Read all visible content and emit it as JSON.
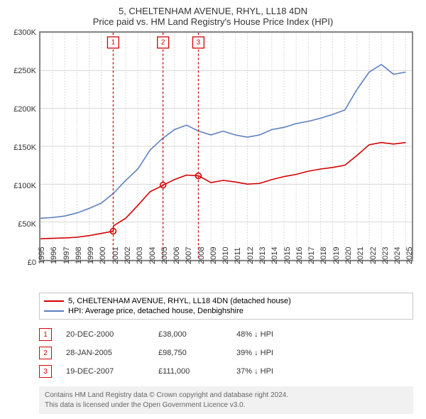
{
  "title_line1": "5, CHELTENHAM AVENUE, RHYL, LL18 4DN",
  "title_line2": "Price paid vs. HM Land Registry's House Price Index (HPI)",
  "chart": {
    "type": "line",
    "background_color": "#ffffff",
    "border_color": "#888888",
    "grid_color": "#d7d7d7",
    "x_years": [
      1995,
      1996,
      1997,
      1998,
      1999,
      2000,
      2001,
      2002,
      2003,
      2004,
      2005,
      2006,
      2007,
      2008,
      2009,
      2010,
      2011,
      2012,
      2013,
      2014,
      2015,
      2016,
      2017,
      2018,
      2019,
      2020,
      2021,
      2022,
      2023,
      2024,
      2025
    ],
    "xlim": [
      1995,
      2025.5
    ],
    "ylim": [
      0,
      300000
    ],
    "ytick_step": 50000,
    "yticks": [
      "£0",
      "£50K",
      "£100K",
      "£150K",
      "£200K",
      "£250K",
      "£300K"
    ],
    "label_fontsize": 11,
    "series": {
      "red": {
        "label": "5, CHELTENHAM AVENUE, RHYL, LL18 4DN (detached house)",
        "color": "#d40000",
        "line_width": 1.6,
        "x": [
          1995,
          1996,
          1997,
          1998,
          1999,
          2000,
          2000.97,
          2001,
          2002,
          2003,
          2004,
          2005,
          2005.07,
          2006,
          2007,
          2007.97,
          2008,
          2009,
          2010,
          2011,
          2012,
          2013,
          2014,
          2015,
          2016,
          2017,
          2018,
          2019,
          2020,
          2021,
          2022,
          2023,
          2024,
          2025
        ],
        "y": [
          28000,
          28500,
          29000,
          30000,
          32000,
          35000,
          38000,
          45000,
          55000,
          72000,
          90000,
          98000,
          98750,
          106000,
          112000,
          111000,
          111000,
          102000,
          105000,
          103000,
          100000,
          101000,
          106000,
          110000,
          113000,
          117000,
          120000,
          122000,
          125000,
          138000,
          152000,
          155000,
          153000,
          155000
        ]
      },
      "blue": {
        "label": "HPI: Average price, detached house, Denbighshire",
        "color": "#5a7fbf",
        "line_width": 1.6,
        "x": [
          1995,
          1996,
          1997,
          1998,
          1999,
          2000,
          2001,
          2002,
          2003,
          2004,
          2005,
          2006,
          2007,
          2008,
          2009,
          2010,
          2011,
          2012,
          2013,
          2014,
          2015,
          2016,
          2017,
          2018,
          2019,
          2020,
          2021,
          2022,
          2023,
          2024,
          2025
        ],
        "y": [
          55000,
          56000,
          58000,
          62000,
          68000,
          75000,
          88000,
          105000,
          120000,
          145000,
          160000,
          172000,
          178000,
          170000,
          165000,
          170000,
          165000,
          162000,
          165000,
          172000,
          175000,
          180000,
          183000,
          187000,
          192000,
          198000,
          225000,
          248000,
          258000,
          245000,
          248000
        ]
      }
    },
    "event_markers": [
      {
        "n": "1",
        "x": 2000.97,
        "y": 38000,
        "color": "#d40000"
      },
      {
        "n": "2",
        "x": 2005.07,
        "y": 98750,
        "color": "#d40000"
      },
      {
        "n": "3",
        "x": 2007.97,
        "y": 111000,
        "color": "#d40000"
      }
    ]
  },
  "legend": [
    {
      "color": "#d40000",
      "label": "5, CHELTENHAM AVENUE, RHYL, LL18 4DN (detached house)"
    },
    {
      "color": "#5a7fbf",
      "label": "HPI: Average price, detached house, Denbighshire"
    }
  ],
  "marker_table": [
    {
      "n": "1",
      "date": "20-DEC-2000",
      "price": "£38,000",
      "delta": "48% ↓ HPI"
    },
    {
      "n": "2",
      "date": "28-JAN-2005",
      "price": "£98,750",
      "delta": "39% ↓ HPI"
    },
    {
      "n": "3",
      "date": "19-DEC-2007",
      "price": "£111,000",
      "delta": "37% ↓ HPI"
    }
  ],
  "footer_line1": "Contains HM Land Registry data © Crown copyright and database right 2024.",
  "footer_line2": "This data is licensed under the Open Government Licence v3.0."
}
